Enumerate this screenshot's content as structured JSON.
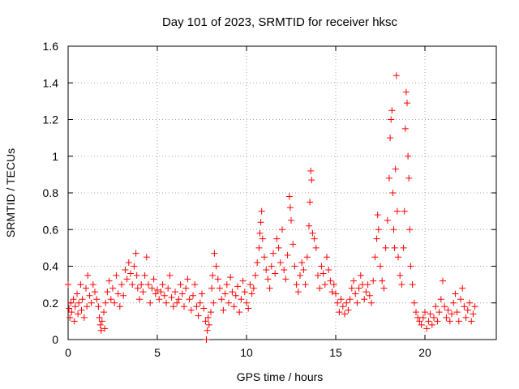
{
  "chart_data": {
    "type": "scatter",
    "title": "Day 101 of 2023, SRMTID for receiver hksc",
    "xlabel": "GPS time / hours",
    "ylabel": "SRMTID / TECUs",
    "xlim": [
      0,
      24
    ],
    "ylim": [
      0,
      1.6
    ],
    "xticks": [
      0,
      5,
      10,
      15,
      20
    ],
    "xtick_labels": [
      "0",
      "5",
      "10",
      "15",
      "20"
    ],
    "yticks": [
      0,
      0.2,
      0.4,
      0.6,
      0.8,
      1,
      1.2,
      1.4,
      1.6
    ],
    "ytick_labels": [
      "0",
      "0.2",
      "0.4",
      "0.6",
      "0.8",
      "1",
      "1.2",
      "1.4",
      "1.6"
    ],
    "grid": true,
    "marker": "plus",
    "color": "#ff0000",
    "series": [
      {
        "name": "SRMTID",
        "points": [
          [
            0.0,
            0.3
          ],
          [
            0.05,
            0.17
          ],
          [
            0.1,
            0.12
          ],
          [
            0.15,
            0.2
          ],
          [
            0.2,
            0.15
          ],
          [
            0.3,
            0.22
          ],
          [
            0.35,
            0.1
          ],
          [
            0.4,
            0.18
          ],
          [
            0.5,
            0.25
          ],
          [
            0.55,
            0.14
          ],
          [
            0.6,
            0.2
          ],
          [
            0.7,
            0.3
          ],
          [
            0.75,
            0.16
          ],
          [
            0.8,
            0.22
          ],
          [
            0.9,
            0.12
          ],
          [
            1.0,
            0.28
          ],
          [
            1.05,
            0.18
          ],
          [
            1.1,
            0.35
          ],
          [
            1.2,
            0.24
          ],
          [
            1.3,
            0.2
          ],
          [
            1.4,
            0.3
          ],
          [
            1.5,
            0.26
          ],
          [
            1.6,
            0.22
          ],
          [
            1.7,
            0.18
          ],
          [
            1.75,
            0.12
          ],
          [
            1.8,
            0.08
          ],
          [
            1.85,
            0.05
          ],
          [
            1.9,
            0.1
          ],
          [
            2.0,
            0.15
          ],
          [
            2.05,
            0.06
          ],
          [
            2.1,
            0.2
          ],
          [
            2.2,
            0.26
          ],
          [
            2.3,
            0.32
          ],
          [
            2.4,
            0.22
          ],
          [
            2.5,
            0.28
          ],
          [
            2.6,
            0.2
          ],
          [
            2.7,
            0.35
          ],
          [
            2.8,
            0.25
          ],
          [
            2.9,
            0.18
          ],
          [
            3.0,
            0.3
          ],
          [
            3.1,
            0.24
          ],
          [
            3.2,
            0.38
          ],
          [
            3.3,
            0.33
          ],
          [
            3.4,
            0.42
          ],
          [
            3.5,
            0.36
          ],
          [
            3.6,
            0.3
          ],
          [
            3.7,
            0.4
          ],
          [
            3.8,
            0.47
          ],
          [
            3.85,
            0.35
          ],
          [
            3.9,
            0.28
          ],
          [
            4.0,
            0.22
          ],
          [
            4.1,
            0.3
          ],
          [
            4.2,
            0.26
          ],
          [
            4.3,
            0.35
          ],
          [
            4.4,
            0.45
          ],
          [
            4.5,
            0.3
          ],
          [
            4.6,
            0.2
          ],
          [
            4.7,
            0.28
          ],
          [
            4.8,
            0.33
          ],
          [
            4.9,
            0.25
          ],
          [
            5.0,
            0.27
          ],
          [
            5.1,
            0.22
          ],
          [
            5.2,
            0.26
          ],
          [
            5.3,
            0.3
          ],
          [
            5.4,
            0.24
          ],
          [
            5.5,
            0.2
          ],
          [
            5.6,
            0.28
          ],
          [
            5.7,
            0.35
          ],
          [
            5.8,
            0.23
          ],
          [
            5.9,
            0.18
          ],
          [
            6.0,
            0.26
          ],
          [
            6.1,
            0.2
          ],
          [
            6.2,
            0.22
          ],
          [
            6.3,
            0.3
          ],
          [
            6.4,
            0.25
          ],
          [
            6.5,
            0.18
          ],
          [
            6.6,
            0.28
          ],
          [
            6.7,
            0.33
          ],
          [
            6.8,
            0.22
          ],
          [
            6.9,
            0.16
          ],
          [
            7.0,
            0.24
          ],
          [
            7.1,
            0.3
          ],
          [
            7.2,
            0.18
          ],
          [
            7.3,
            0.13
          ],
          [
            7.4,
            0.2
          ],
          [
            7.5,
            0.25
          ],
          [
            7.6,
            0.17
          ],
          [
            7.7,
            0.1
          ],
          [
            7.75,
            0.0
          ],
          [
            7.8,
            0.05
          ],
          [
            7.85,
            0.12
          ],
          [
            7.9,
            0.08
          ],
          [
            8.0,
            0.15
          ],
          [
            8.05,
            0.28
          ],
          [
            8.1,
            0.35
          ],
          [
            8.15,
            0.2
          ],
          [
            8.2,
            0.47
          ],
          [
            8.3,
            0.4
          ],
          [
            8.4,
            0.33
          ],
          [
            8.5,
            0.28
          ],
          [
            8.6,
            0.22
          ],
          [
            8.7,
            0.16
          ],
          [
            8.8,
            0.25
          ],
          [
            8.9,
            0.3
          ],
          [
            9.0,
            0.2
          ],
          [
            9.1,
            0.34
          ],
          [
            9.2,
            0.26
          ],
          [
            9.3,
            0.18
          ],
          [
            9.4,
            0.24
          ],
          [
            9.5,
            0.29
          ],
          [
            9.6,
            0.15
          ],
          [
            9.7,
            0.22
          ],
          [
            9.8,
            0.32
          ],
          [
            9.9,
            0.26
          ],
          [
            10.0,
            0.2
          ],
          [
            10.1,
            0.17
          ],
          [
            10.2,
            0.3
          ],
          [
            10.3,
            0.25
          ],
          [
            10.4,
            0.28
          ],
          [
            10.5,
            0.35
          ],
          [
            10.6,
            0.42
          ],
          [
            10.7,
            0.5
          ],
          [
            10.75,
            0.58
          ],
          [
            10.8,
            0.64
          ],
          [
            10.85,
            0.7
          ],
          [
            10.9,
            0.55
          ],
          [
            11.0,
            0.45
          ],
          [
            11.1,
            0.38
          ],
          [
            11.2,
            0.33
          ],
          [
            11.3,
            0.28
          ],
          [
            11.4,
            0.4
          ],
          [
            11.5,
            0.47
          ],
          [
            11.6,
            0.36
          ],
          [
            11.7,
            0.55
          ],
          [
            11.8,
            0.5
          ],
          [
            11.9,
            0.42
          ],
          [
            12.0,
            0.6
          ],
          [
            12.1,
            0.38
          ],
          [
            12.2,
            0.33
          ],
          [
            12.3,
            0.46
          ],
          [
            12.4,
            0.78
          ],
          [
            12.45,
            0.72
          ],
          [
            12.5,
            0.65
          ],
          [
            12.6,
            0.52
          ],
          [
            12.7,
            0.4
          ],
          [
            12.8,
            0.3
          ],
          [
            12.9,
            0.26
          ],
          [
            13.0,
            0.35
          ],
          [
            13.1,
            0.42
          ],
          [
            13.2,
            0.38
          ],
          [
            13.3,
            0.3
          ],
          [
            13.4,
            0.45
          ],
          [
            13.5,
            0.62
          ],
          [
            13.55,
            0.75
          ],
          [
            13.6,
            0.92
          ],
          [
            13.65,
            0.87
          ],
          [
            13.7,
            0.58
          ],
          [
            13.8,
            0.55
          ],
          [
            13.9,
            0.5
          ],
          [
            14.0,
            0.35
          ],
          [
            14.1,
            0.28
          ],
          [
            14.2,
            0.4
          ],
          [
            14.3,
            0.36
          ],
          [
            14.4,
            0.3
          ],
          [
            14.5,
            0.45
          ],
          [
            14.6,
            0.38
          ],
          [
            14.7,
            0.32
          ],
          [
            14.8,
            0.26
          ],
          [
            14.9,
            0.3
          ],
          [
            15.0,
            0.25
          ],
          [
            15.1,
            0.2
          ],
          [
            15.2,
            0.15
          ],
          [
            15.3,
            0.22
          ],
          [
            15.4,
            0.18
          ],
          [
            15.5,
            0.14
          ],
          [
            15.6,
            0.2
          ],
          [
            15.7,
            0.16
          ],
          [
            15.8,
            0.22
          ],
          [
            15.9,
            0.28
          ],
          [
            16.0,
            0.32
          ],
          [
            16.1,
            0.25
          ],
          [
            16.2,
            0.2
          ],
          [
            16.3,
            0.28
          ],
          [
            16.4,
            0.35
          ],
          [
            16.5,
            0.3
          ],
          [
            16.6,
            0.22
          ],
          [
            16.7,
            0.26
          ],
          [
            16.8,
            0.3
          ],
          [
            16.9,
            0.24
          ],
          [
            17.0,
            0.2
          ],
          [
            17.1,
            0.32
          ],
          [
            17.2,
            0.45
          ],
          [
            17.3,
            0.55
          ],
          [
            17.35,
            0.68
          ],
          [
            17.4,
            0.6
          ],
          [
            17.5,
            0.4
          ],
          [
            17.6,
            0.32
          ],
          [
            17.7,
            0.28
          ],
          [
            17.8,
            0.5
          ],
          [
            17.9,
            0.65
          ],
          [
            18.0,
            0.88
          ],
          [
            18.05,
            1.1
          ],
          [
            18.1,
            1.2
          ],
          [
            18.15,
            1.25
          ],
          [
            18.2,
            0.8
          ],
          [
            18.25,
            0.6
          ],
          [
            18.3,
            0.5
          ],
          [
            18.35,
            0.93
          ],
          [
            18.4,
            1.44
          ],
          [
            18.45,
            0.7
          ],
          [
            18.5,
            0.45
          ],
          [
            18.6,
            0.35
          ],
          [
            18.7,
            0.3
          ],
          [
            18.8,
            0.5
          ],
          [
            18.85,
            0.7
          ],
          [
            18.9,
            1.15
          ],
          [
            18.95,
            1.35
          ],
          [
            19.0,
            1.29
          ],
          [
            19.05,
            1.0
          ],
          [
            19.1,
            0.88
          ],
          [
            19.15,
            0.6
          ],
          [
            19.2,
            0.4
          ],
          [
            19.3,
            0.3
          ],
          [
            19.4,
            0.2
          ],
          [
            19.5,
            0.15
          ],
          [
            19.6,
            0.12
          ],
          [
            19.7,
            0.1
          ],
          [
            19.8,
            0.08
          ],
          [
            19.9,
            0.12
          ],
          [
            20.0,
            0.15
          ],
          [
            20.1,
            0.06
          ],
          [
            20.2,
            0.1
          ],
          [
            20.3,
            0.14
          ],
          [
            20.4,
            0.08
          ],
          [
            20.5,
            0.12
          ],
          [
            20.6,
            0.18
          ],
          [
            20.7,
            0.1
          ],
          [
            20.8,
            0.15
          ],
          [
            20.9,
            0.22
          ],
          [
            21.0,
            0.32
          ],
          [
            21.1,
            0.18
          ],
          [
            21.2,
            0.12
          ],
          [
            21.3,
            0.16
          ],
          [
            21.4,
            0.1
          ],
          [
            21.5,
            0.14
          ],
          [
            21.6,
            0.2
          ],
          [
            21.7,
            0.25
          ],
          [
            21.8,
            0.15
          ],
          [
            21.9,
            0.1
          ],
          [
            22.0,
            0.22
          ],
          [
            22.1,
            0.28
          ],
          [
            22.2,
            0.18
          ],
          [
            22.3,
            0.12
          ],
          [
            22.4,
            0.16
          ],
          [
            22.5,
            0.2
          ],
          [
            22.6,
            0.1
          ],
          [
            22.7,
            0.14
          ],
          [
            22.8,
            0.18
          ]
        ]
      }
    ]
  }
}
